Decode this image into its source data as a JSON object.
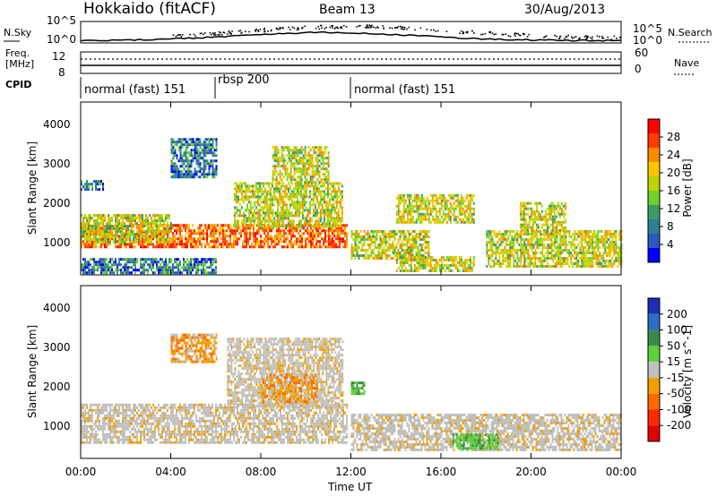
{
  "header": {
    "station": "Hokkaido (fitACF)",
    "beam": "Beam 13",
    "date": "30/Aug/2013"
  },
  "top_panels": {
    "nsky_label": "N.Sky",
    "nsky_ticks": [
      "10^5",
      "10^0"
    ],
    "nsky_right_ticks": [
      "10^5",
      "10^0"
    ],
    "nsearch_label": "N.Search",
    "freq_label_1": "Freq.",
    "freq_label_2": "[MHz]",
    "freq_ticks": [
      "12",
      "8"
    ],
    "nave_ticks": [
      "60",
      "0"
    ],
    "nave_label": "Nave",
    "cpid_label": "CPID",
    "cpid_segments": [
      {
        "label": "normal (fast) 151",
        "start_hour": 0,
        "end_hour": 6.0
      },
      {
        "label": "rbsp 200",
        "start_hour": 6.0,
        "end_hour": 12.0
      },
      {
        "label": "normal (fast) 151",
        "start_hour": 12.0,
        "end_hour": 24.0
      }
    ]
  },
  "panels": {
    "power_ylabel": "Slant Range [km]",
    "velocity_ylabel": "Slant Range [km]",
    "y_ticks": [
      "1000",
      "2000",
      "3000",
      "4000"
    ],
    "x_ticks": [
      "00:00",
      "04:00",
      "08:00",
      "12:00",
      "16:00",
      "20:00",
      "00:00"
    ],
    "xlabel": "Time UT"
  },
  "colorbars": {
    "power_label": "Power [dB]",
    "power_ticks": [
      "28",
      "24",
      "20",
      "16",
      "12",
      "8",
      "4"
    ],
    "power_colors": [
      "#ff0000",
      "#ff3b00",
      "#ff8c00",
      "#ffc600",
      "#bcd400",
      "#6ed22b",
      "#3c9c64",
      "#2f7f92",
      "#2c58c2",
      "#0000ff"
    ],
    "velocity_label": "Velocity [m s^-1]",
    "velocity_ticks": [
      "200",
      "100",
      "50",
      "15",
      "-15",
      "-50",
      "-100",
      "-200"
    ],
    "velocity_colors": [
      "#1c2db6",
      "#2f6ec5",
      "#3b8a4a",
      "#5fd03a",
      "#c0c0bc",
      "#f2a000",
      "#ff6a00",
      "#ff2a00",
      "#e30000"
    ]
  },
  "chart_data": {
    "type": "heatmap",
    "x_unit": "hours UT",
    "x_range": [
      0,
      24
    ],
    "y_range_km": [
      180,
      4500
    ],
    "power_blobs": [
      {
        "t0": 0.0,
        "t1": 11.8,
        "r0": 850,
        "r1": 1450,
        "level": "high"
      },
      {
        "t0": 0.0,
        "t1": 4.0,
        "r0": 1000,
        "r1": 1700,
        "level": "medium"
      },
      {
        "t0": 6.8,
        "t1": 11.6,
        "r0": 1400,
        "r1": 2500,
        "level": "medium"
      },
      {
        "t0": 8.5,
        "t1": 11.0,
        "r0": 2500,
        "r1": 3400,
        "level": "medium"
      },
      {
        "t0": 4.0,
        "t1": 6.0,
        "r0": 2600,
        "r1": 3600,
        "level": "low"
      },
      {
        "t0": 0.0,
        "t1": 1.0,
        "r0": 2300,
        "r1": 2550,
        "level": "low"
      },
      {
        "t0": 0.0,
        "t1": 6.0,
        "r0": 250,
        "r1": 600,
        "level": "low"
      },
      {
        "t0": 12.0,
        "t1": 15.5,
        "r0": 600,
        "r1": 1300,
        "level": "medium"
      },
      {
        "t0": 14.0,
        "t1": 17.5,
        "r0": 1500,
        "r1": 2200,
        "level": "medium"
      },
      {
        "t0": 14.0,
        "t1": 17.5,
        "r0": 300,
        "r1": 650,
        "level": "medium"
      },
      {
        "t0": 18.0,
        "t1": 24.0,
        "r0": 400,
        "r1": 1300,
        "level": "medium"
      },
      {
        "t0": 19.5,
        "t1": 21.5,
        "r0": 1300,
        "r1": 2000,
        "level": "medium"
      }
    ],
    "velocity_blobs": [
      {
        "t0": 0.0,
        "t1": 11.8,
        "r0": 600,
        "r1": 1550,
        "class": "-15 to 15"
      },
      {
        "t0": 6.5,
        "t1": 11.6,
        "r0": 1500,
        "r1": 3200,
        "class": "-15 to 15"
      },
      {
        "t0": 8.0,
        "t1": 10.5,
        "r0": 1600,
        "r1": 2300,
        "class": "-50 to -15"
      },
      {
        "t0": 4.0,
        "t1": 6.0,
        "r0": 2600,
        "r1": 3300,
        "class": "-50 to -15"
      },
      {
        "t0": 12.0,
        "t1": 24.0,
        "r0": 400,
        "r1": 1300,
        "class": "-15 to 15"
      },
      {
        "t0": 16.5,
        "t1": 18.5,
        "r0": 400,
        "r1": 800,
        "class": "15 to 50"
      },
      {
        "t0": 12.0,
        "t1": 12.6,
        "r0": 1800,
        "r1": 2100,
        "class": "15 to 50"
      }
    ]
  }
}
